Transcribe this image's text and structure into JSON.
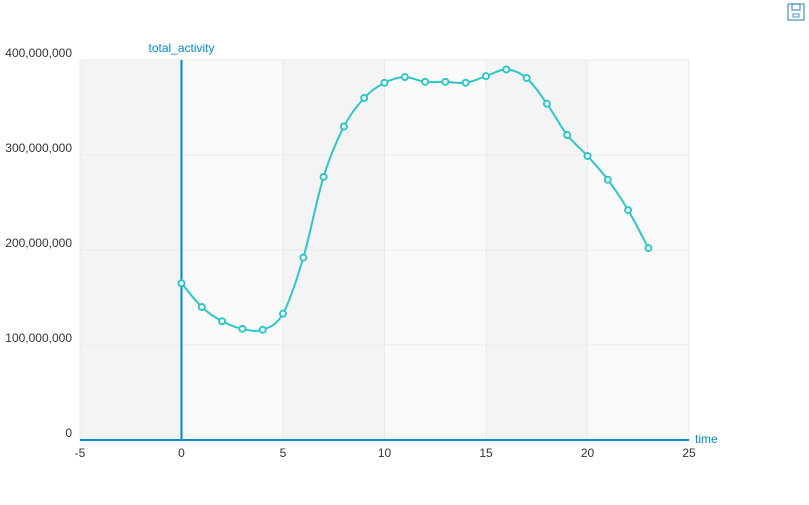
{
  "chart_data": {
    "type": "line",
    "x_axis_name": "time",
    "y_axis_name": "total_activity",
    "series": [
      {
        "name": "total_activity",
        "color": "#2ec7c9",
        "x": [
          0,
          1,
          2,
          3,
          4,
          5,
          6,
          7,
          8,
          9,
          10,
          11,
          12,
          13,
          14,
          15,
          16,
          17,
          18,
          19,
          20,
          21,
          22,
          23
        ],
        "values": [
          165000000,
          140000000,
          125000000,
          117000000,
          116000000,
          133000000,
          192000000,
          277000000,
          330000000,
          360000000,
          376000000,
          382000000,
          377000000,
          377000000,
          376000000,
          383000000,
          390000000,
          381000000,
          354000000,
          321000000,
          299000000,
          274000000,
          242000000,
          202000000
        ]
      }
    ],
    "xlim": [
      -5,
      25
    ],
    "xticks": [
      -5,
      0,
      5,
      10,
      15,
      20,
      25
    ],
    "ylim": [
      0,
      400000000
    ],
    "yticks": [
      0,
      {
        "value": 100000000,
        "label": "100,000,000"
      },
      {
        "value": 200000000,
        "label": "200,000,000"
      },
      {
        "value": 300000000,
        "label": "300,000,000"
      },
      {
        "value": 400000000,
        "label": "400,000,000"
      }
    ],
    "grid": true
  }
}
